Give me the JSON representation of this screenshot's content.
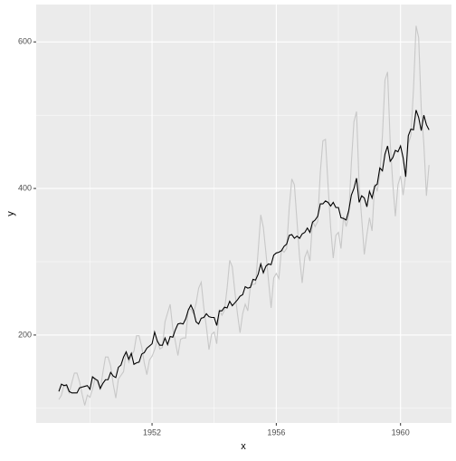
{
  "chart_data": {
    "type": "line",
    "x": [
      1949,
      1949.083,
      1949.167,
      1949.25,
      1949.333,
      1949.417,
      1949.5,
      1949.583,
      1949.667,
      1949.75,
      1949.833,
      1949.917,
      1950,
      1950.083,
      1950.167,
      1950.25,
      1950.333,
      1950.417,
      1950.5,
      1950.583,
      1950.667,
      1950.75,
      1950.833,
      1950.917,
      1951,
      1951.083,
      1951.167,
      1951.25,
      1951.333,
      1951.417,
      1951.5,
      1951.583,
      1951.667,
      1951.75,
      1951.833,
      1951.917,
      1952,
      1952.083,
      1952.167,
      1952.25,
      1952.333,
      1952.417,
      1952.5,
      1952.583,
      1952.667,
      1952.75,
      1952.833,
      1952.917,
      1953,
      1953.083,
      1953.167,
      1953.25,
      1953.333,
      1953.417,
      1953.5,
      1953.583,
      1953.667,
      1953.75,
      1953.833,
      1953.917,
      1954,
      1954.083,
      1954.167,
      1954.25,
      1954.333,
      1954.417,
      1954.5,
      1954.583,
      1954.667,
      1954.75,
      1954.833,
      1954.917,
      1955,
      1955.083,
      1955.167,
      1955.25,
      1955.333,
      1955.417,
      1955.5,
      1955.583,
      1955.667,
      1955.75,
      1955.833,
      1955.917,
      1956,
      1956.083,
      1956.167,
      1956.25,
      1956.333,
      1956.417,
      1956.5,
      1956.583,
      1956.667,
      1956.75,
      1956.833,
      1956.917,
      1957,
      1957.083,
      1957.167,
      1957.25,
      1957.333,
      1957.417,
      1957.5,
      1957.583,
      1957.667,
      1957.75,
      1957.833,
      1957.917,
      1958,
      1958.083,
      1958.167,
      1958.25,
      1958.333,
      1958.417,
      1958.5,
      1958.583,
      1958.667,
      1958.75,
      1958.833,
      1958.917,
      1959,
      1959.083,
      1959.167,
      1959.25,
      1959.333,
      1959.417,
      1959.5,
      1959.583,
      1959.667,
      1959.75,
      1959.833,
      1959.917,
      1960,
      1960.083,
      1960.167,
      1960.25,
      1960.333,
      1960.417,
      1960.5,
      1960.583,
      1960.667,
      1960.75,
      1960.833,
      1960.917
    ],
    "series": [
      {
        "color": "#c8c8c8",
        "values": [
          112,
          118,
          132,
          129,
          121,
          135,
          148,
          148,
          136,
          119,
          104,
          118,
          115,
          126,
          141,
          135,
          125,
          149,
          170,
          170,
          158,
          133,
          114,
          140,
          145,
          150,
          178,
          163,
          172,
          178,
          199,
          199,
          184,
          162,
          146,
          166,
          171,
          180,
          193,
          181,
          183,
          218,
          230,
          242,
          209,
          191,
          172,
          194,
          196,
          196,
          236,
          235,
          229,
          243,
          264,
          272,
          237,
          211,
          180,
          201,
          204,
          188,
          235,
          227,
          234,
          264,
          302,
          293,
          259,
          229,
          203,
          229,
          242,
          233,
          267,
          269,
          270,
          315,
          364,
          347,
          312,
          274,
          237,
          278,
          284,
          277,
          317,
          313,
          318,
          374,
          413,
          405,
          355,
          306,
          271,
          306,
          315,
          301,
          356,
          348,
          355,
          422,
          465,
          467,
          404,
          347,
          305,
          336,
          340,
          318,
          362,
          348,
          363,
          435,
          491,
          505,
          404,
          359,
          310,
          337,
          360,
          342,
          406,
          396,
          420,
          472,
          548,
          559,
          463,
          407,
          362,
          405,
          417,
          391,
          419,
          461,
          472,
          535,
          622,
          606,
          508,
          461,
          390,
          432
        ]
      },
      {
        "color": "#000000",
        "values": [
          123,
          133,
          131,
          132,
          123,
          121,
          121,
          121,
          128,
          129,
          130,
          131,
          126,
          143,
          140,
          138,
          127,
          134,
          139,
          139,
          149,
          144,
          142,
          156,
          159,
          170,
          177,
          167,
          175,
          160,
          162,
          163,
          174,
          176,
          182,
          185,
          188,
          204,
          192,
          186,
          186,
          196,
          187,
          198,
          197,
          207,
          215,
          216,
          215,
          222,
          234,
          241,
          233,
          218,
          215,
          223,
          224,
          229,
          225,
          224,
          224,
          213,
          233,
          233,
          238,
          237,
          246,
          240,
          244,
          248,
          253,
          255,
          266,
          264,
          265,
          276,
          275,
          283,
          297,
          285,
          294,
          297,
          296,
          309,
          312,
          313,
          315,
          321,
          324,
          336,
          337,
          332,
          335,
          332,
          338,
          340,
          346,
          340,
          354,
          357,
          362,
          379,
          379,
          383,
          381,
          376,
          381,
          374,
          374,
          360,
          359,
          357,
          370,
          391,
          400,
          414,
          381,
          390,
          387,
          375,
          396,
          387,
          403,
          406,
          428,
          424,
          447,
          458,
          437,
          442,
          452,
          450,
          458,
          442,
          416,
          472,
          481,
          480,
          507,
          497,
          479,
          500,
          487,
          480
        ]
      }
    ],
    "xlabel": "x",
    "ylabel": "y",
    "xlim": [
      1948.27,
      1961.64
    ],
    "ylim": [
      80,
      651
    ],
    "xticks": [
      1952,
      1956,
      1960
    ],
    "yticks": [
      200,
      400,
      600
    ],
    "grid": true
  }
}
